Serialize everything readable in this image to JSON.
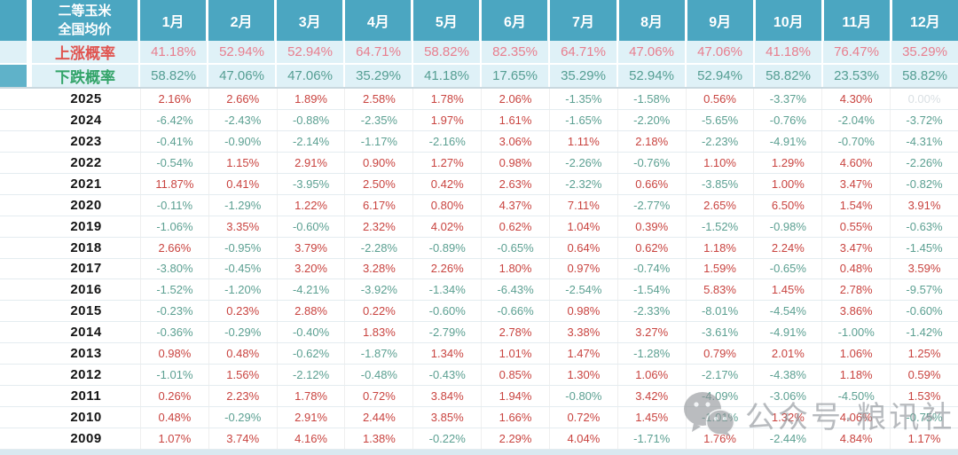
{
  "chart_data": {
    "type": "table",
    "title_line1": "二等玉米",
    "title_line2": "全国均价",
    "columns": [
      "1月",
      "2月",
      "3月",
      "4月",
      "5月",
      "6月",
      "7月",
      "8月",
      "9月",
      "10月",
      "11月",
      "12月"
    ],
    "rise_probability": {
      "label": "上涨概率",
      "values": [
        "41.18%",
        "52.94%",
        "52.94%",
        "64.71%",
        "58.82%",
        "82.35%",
        "64.71%",
        "47.06%",
        "47.06%",
        "41.18%",
        "76.47%",
        "35.29%"
      ]
    },
    "fall_probability": {
      "label": "下跌概率",
      "values": [
        "58.82%",
        "47.06%",
        "47.06%",
        "35.29%",
        "41.18%",
        "17.65%",
        "35.29%",
        "52.94%",
        "52.94%",
        "58.82%",
        "23.53%",
        "58.82%"
      ]
    },
    "rows": [
      {
        "year": "2025",
        "values": [
          "2.16%",
          "2.66%",
          "1.89%",
          "2.58%",
          "1.78%",
          "2.06%",
          "-1.35%",
          "-1.58%",
          "0.56%",
          "-3.37%",
          "4.30%",
          "0.00%"
        ]
      },
      {
        "year": "2024",
        "values": [
          "-6.42%",
          "-2.43%",
          "-0.88%",
          "-2.35%",
          "1.97%",
          "1.61%",
          "-1.65%",
          "-2.20%",
          "-5.65%",
          "-0.76%",
          "-2.04%",
          "-3.72%"
        ]
      },
      {
        "year": "2023",
        "values": [
          "-0.41%",
          "-0.90%",
          "-2.14%",
          "-1.17%",
          "-2.16%",
          "3.06%",
          "1.11%",
          "2.18%",
          "-2.23%",
          "-4.91%",
          "-0.70%",
          "-4.31%"
        ]
      },
      {
        "year": "2022",
        "values": [
          "-0.54%",
          "1.15%",
          "2.91%",
          "0.90%",
          "1.27%",
          "0.98%",
          "-2.26%",
          "-0.76%",
          "1.10%",
          "1.29%",
          "4.60%",
          "-2.26%"
        ]
      },
      {
        "year": "2021",
        "values": [
          "11.87%",
          "0.41%",
          "-3.95%",
          "2.50%",
          "0.42%",
          "2.63%",
          "-2.32%",
          "0.66%",
          "-3.85%",
          "1.00%",
          "3.47%",
          "-0.82%"
        ]
      },
      {
        "year": "2020",
        "values": [
          "-0.11%",
          "-1.29%",
          "1.22%",
          "6.17%",
          "0.80%",
          "4.37%",
          "7.11%",
          "-2.77%",
          "2.65%",
          "6.50%",
          "1.54%",
          "3.91%"
        ]
      },
      {
        "year": "2019",
        "values": [
          "-1.06%",
          "3.35%",
          "-0.60%",
          "2.32%",
          "4.02%",
          "0.62%",
          "1.04%",
          "0.39%",
          "-1.52%",
          "-0.98%",
          "0.55%",
          "-0.63%"
        ]
      },
      {
        "year": "2018",
        "values": [
          "2.66%",
          "-0.95%",
          "3.79%",
          "-2.28%",
          "-0.89%",
          "-0.65%",
          "0.64%",
          "0.62%",
          "1.18%",
          "2.24%",
          "3.47%",
          "-1.45%"
        ]
      },
      {
        "year": "2017",
        "values": [
          "-3.80%",
          "-0.45%",
          "3.20%",
          "3.28%",
          "2.26%",
          "1.80%",
          "0.97%",
          "-0.74%",
          "1.59%",
          "-0.65%",
          "0.48%",
          "3.59%"
        ]
      },
      {
        "year": "2016",
        "values": [
          "-1.52%",
          "-1.20%",
          "-4.21%",
          "-3.92%",
          "-1.34%",
          "-6.43%",
          "-2.54%",
          "-1.54%",
          "5.83%",
          "1.45%",
          "2.78%",
          "-9.57%"
        ]
      },
      {
        "year": "2015",
        "values": [
          "-0.23%",
          "0.23%",
          "2.88%",
          "0.22%",
          "-0.60%",
          "-0.66%",
          "0.98%",
          "-2.33%",
          "-8.01%",
          "-4.54%",
          "3.86%",
          "-0.60%"
        ]
      },
      {
        "year": "2014",
        "values": [
          "-0.36%",
          "-0.29%",
          "-0.40%",
          "1.83%",
          "-2.79%",
          "2.78%",
          "3.38%",
          "3.27%",
          "-3.61%",
          "-4.91%",
          "-1.00%",
          "-1.42%"
        ]
      },
      {
        "year": "2013",
        "values": [
          "0.98%",
          "0.48%",
          "-0.62%",
          "-1.87%",
          "1.34%",
          "1.01%",
          "1.47%",
          "-1.28%",
          "0.79%",
          "2.01%",
          "1.06%",
          "1.25%"
        ]
      },
      {
        "year": "2012",
        "values": [
          "-1.01%",
          "1.56%",
          "-2.12%",
          "-0.48%",
          "-0.43%",
          "0.85%",
          "1.30%",
          "1.06%",
          "-2.17%",
          "-4.38%",
          "1.18%",
          "0.59%"
        ]
      },
      {
        "year": "2011",
        "values": [
          "0.26%",
          "2.23%",
          "1.78%",
          "0.72%",
          "3.84%",
          "1.94%",
          "-0.80%",
          "3.42%",
          "-4.09%",
          "-3.06%",
          "-4.50%",
          "1.53%"
        ]
      },
      {
        "year": "2010",
        "values": [
          "0.48%",
          "-0.29%",
          "2.91%",
          "2.44%",
          "3.85%",
          "1.66%",
          "0.72%",
          "1.45%",
          "-1.01%",
          "1.32%",
          "4.06%",
          "-0.75%"
        ]
      },
      {
        "year": "2009",
        "values": [
          "1.07%",
          "3.74%",
          "4.16%",
          "1.38%",
          "-0.22%",
          "2.29%",
          "4.04%",
          "-1.71%",
          "1.76%",
          "-2.44%",
          "4.84%",
          "1.17%"
        ]
      }
    ]
  },
  "watermark": {
    "text": "公众号·粮讯社",
    "icon": "wechat-icon"
  },
  "colors": {
    "header_bg": "#4ba6c1",
    "prob_row_bg": "#dff1f7",
    "sliver_teal": "#5fb2c9",
    "rise_label": "#e05450",
    "rise_value": "#e87e8e",
    "fall_label": "#33a469",
    "fall_value": "#559e93",
    "pos": "#c94440",
    "neg": "#5ca092",
    "zero": "#d9dfe3"
  }
}
